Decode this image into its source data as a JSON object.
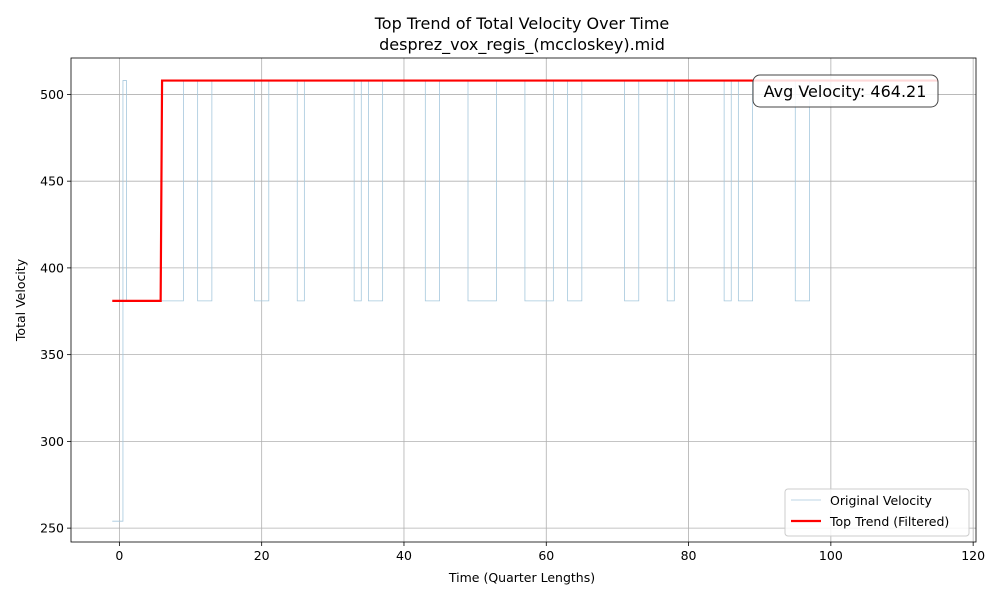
{
  "chart_data": {
    "type": "line",
    "title": "Top Trend of Total Velocity Over Time",
    "subtitle": "desprez_vox_regis_(mccloskey).mid",
    "xlabel": "Time (Quarter Lengths)",
    "ylabel": "Total Velocity",
    "xlim": [
      -6.8,
      120.4
    ],
    "ylim": [
      242,
      521
    ],
    "xticks": [
      0,
      20,
      40,
      60,
      80,
      100,
      120
    ],
    "yticks": [
      250,
      300,
      350,
      400,
      450,
      500
    ],
    "grid": true,
    "legend_position": "bottom-right",
    "annotation": {
      "text": "Avg Velocity: 464.21",
      "position": "top-right"
    },
    "series": [
      {
        "name": "Original Velocity",
        "color": "#a6c8dd",
        "x": [
          -1,
          0.5,
          0.5,
          1,
          1,
          9,
          9,
          11,
          11,
          13,
          13,
          19,
          19,
          21,
          21,
          25,
          25,
          26,
          26,
          33,
          33,
          34,
          34,
          35,
          35,
          37,
          37,
          43,
          43,
          45,
          45,
          49,
          49,
          53,
          53,
          57,
          57,
          61,
          61,
          63,
          63,
          65,
          65,
          71,
          71,
          73,
          73,
          77,
          77,
          78,
          78,
          85,
          85,
          86,
          86,
          87,
          87,
          89,
          89,
          95,
          95,
          97,
          97,
          115
        ],
        "y": [
          254,
          254,
          508,
          508,
          381,
          381,
          508,
          508,
          381,
          381,
          508,
          508,
          381,
          381,
          508,
          508,
          381,
          381,
          508,
          508,
          381,
          381,
          508,
          508,
          381,
          381,
          508,
          508,
          381,
          381,
          508,
          508,
          381,
          381,
          508,
          508,
          381,
          381,
          508,
          508,
          381,
          381,
          508,
          508,
          381,
          381,
          508,
          508,
          381,
          381,
          508,
          508,
          381,
          381,
          508,
          508,
          381,
          381,
          508,
          508,
          381,
          381,
          508,
          508
        ]
      },
      {
        "name": "Top Trend (Filtered)",
        "color": "#ff0000",
        "x": [
          -1,
          5.8,
          6,
          115
        ],
        "y": [
          381,
          381,
          508,
          508
        ]
      }
    ]
  }
}
